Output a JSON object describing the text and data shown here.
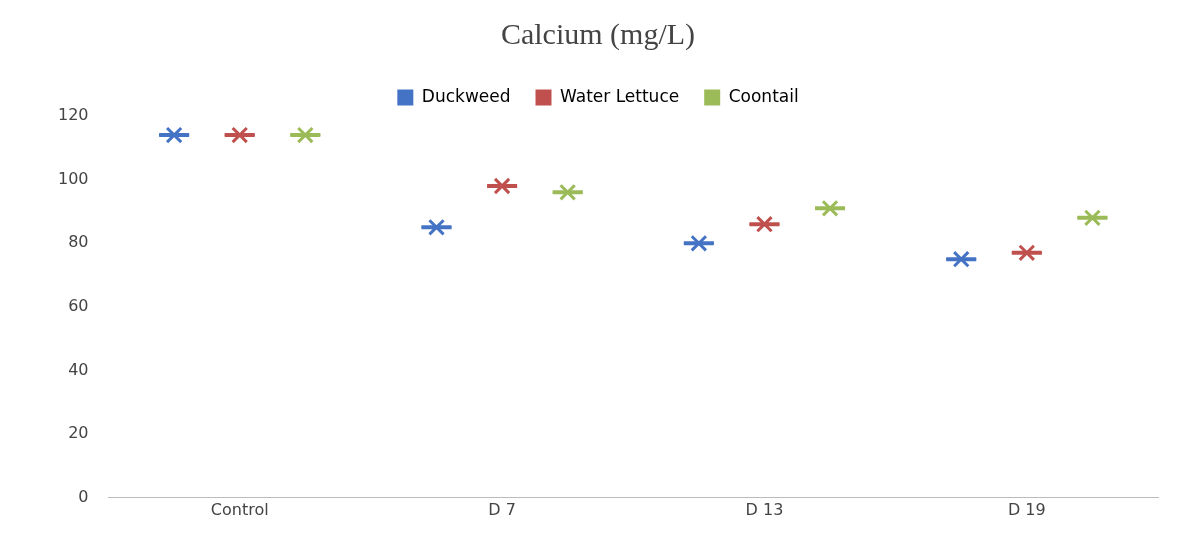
{
  "chart_data": {
    "type": "box",
    "title": "Calcium (mg/L)",
    "categories": [
      "Control",
      "D 7",
      "D 13",
      "D 19"
    ],
    "ylim": [
      0,
      120
    ],
    "yticks": [
      0,
      20,
      40,
      60,
      80,
      100,
      120
    ],
    "grid": false,
    "legend": "top",
    "marker": "cross",
    "series": [
      {
        "name": "Duckweed",
        "color": "#4472c4",
        "boxes": [
          {
            "low": 114,
            "q1": 114,
            "median": 114,
            "q3": 114,
            "high": 114,
            "mean": 114
          },
          {
            "low": 85,
            "q1": 85,
            "median": 85,
            "q3": 85,
            "high": 85,
            "mean": 85
          },
          {
            "low": 80,
            "q1": 80,
            "median": 80,
            "q3": 80,
            "high": 80,
            "mean": 80
          },
          {
            "low": 75,
            "q1": 75,
            "median": 75,
            "q3": 75,
            "high": 75,
            "mean": 75
          }
        ]
      },
      {
        "name": "Water Lettuce",
        "color": "#c0504d",
        "boxes": [
          {
            "low": 114,
            "q1": 114,
            "median": 114,
            "q3": 114,
            "high": 114,
            "mean": 114
          },
          {
            "low": 98,
            "q1": 98,
            "median": 98,
            "q3": 98,
            "high": 98,
            "mean": 98
          },
          {
            "low": 86,
            "q1": 86,
            "median": 86,
            "q3": 86,
            "high": 86,
            "mean": 86
          },
          {
            "low": 77,
            "q1": 77,
            "median": 77,
            "q3": 77,
            "high": 77,
            "mean": 77
          }
        ]
      },
      {
        "name": "Coontail",
        "color": "#9bbb59",
        "boxes": [
          {
            "low": 114,
            "q1": 114,
            "median": 114,
            "q3": 114,
            "high": 114,
            "mean": 114
          },
          {
            "low": 96,
            "q1": 96,
            "median": 96,
            "q3": 96,
            "high": 96,
            "mean": 96
          },
          {
            "low": 91,
            "q1": 91,
            "median": 91,
            "q3": 91,
            "high": 91,
            "mean": 91
          },
          {
            "low": 88,
            "q1": 88,
            "median": 88,
            "q3": 88,
            "high": 88,
            "mean": 88
          }
        ]
      }
    ]
  }
}
